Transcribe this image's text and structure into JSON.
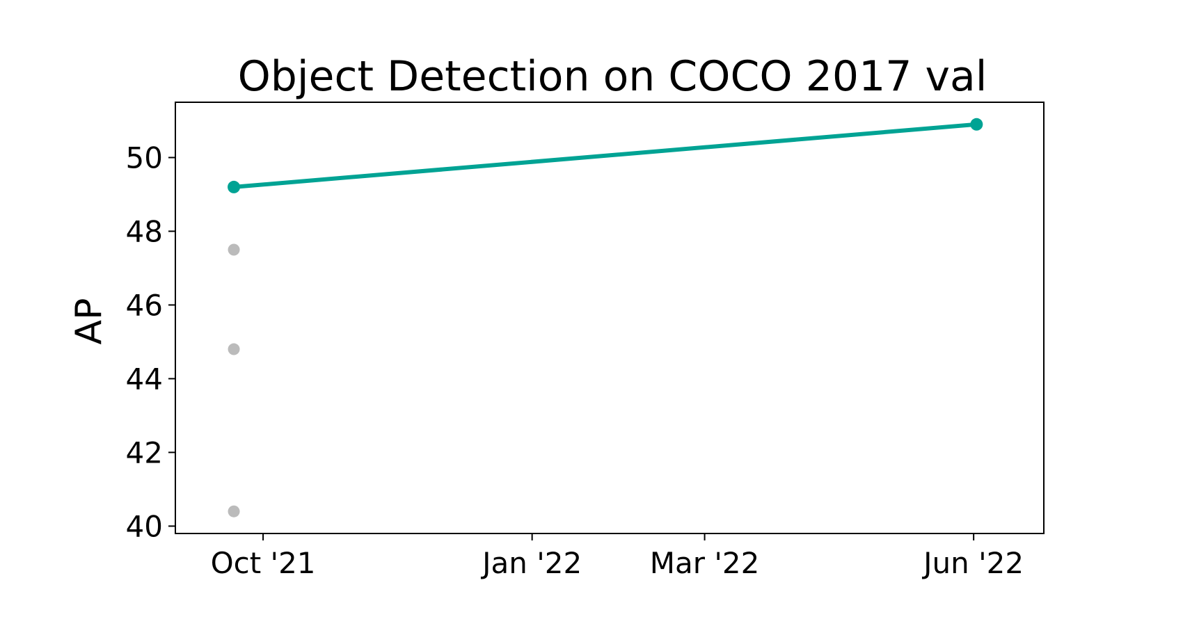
{
  "chart_data": {
    "type": "line",
    "title": "Object Detection on COCO 2017 val",
    "xlabel": "",
    "ylabel": "AP",
    "x_axis_type": "date",
    "xlim": [
      "2021-09-01",
      "2022-06-25"
    ],
    "ylim": [
      39.8,
      51.5
    ],
    "y_ticks": [
      40,
      42,
      44,
      46,
      48,
      50
    ],
    "x_ticks": [
      {
        "date": "2021-10-01",
        "label": "Oct '21"
      },
      {
        "date": "2022-01-01",
        "label": "Jan '22"
      },
      {
        "date": "2022-03-01",
        "label": "Mar '22"
      },
      {
        "date": "2022-06-01",
        "label": "Jun '22"
      }
    ],
    "grid": false,
    "series": [
      {
        "role": "state-of-the-art",
        "color": "#00a394",
        "style": "line-with-markers",
        "points": [
          {
            "x": "2021-09-21",
            "y": 49.2
          },
          {
            "x": "2022-06-02",
            "y": 50.9
          }
        ]
      },
      {
        "role": "other-results",
        "color": "#bbbbbb",
        "style": "markers",
        "points": [
          {
            "x": "2021-09-21",
            "y": 47.5
          },
          {
            "x": "2021-09-21",
            "y": 44.8
          },
          {
            "x": "2021-09-21",
            "y": 40.4
          }
        ]
      }
    ]
  }
}
